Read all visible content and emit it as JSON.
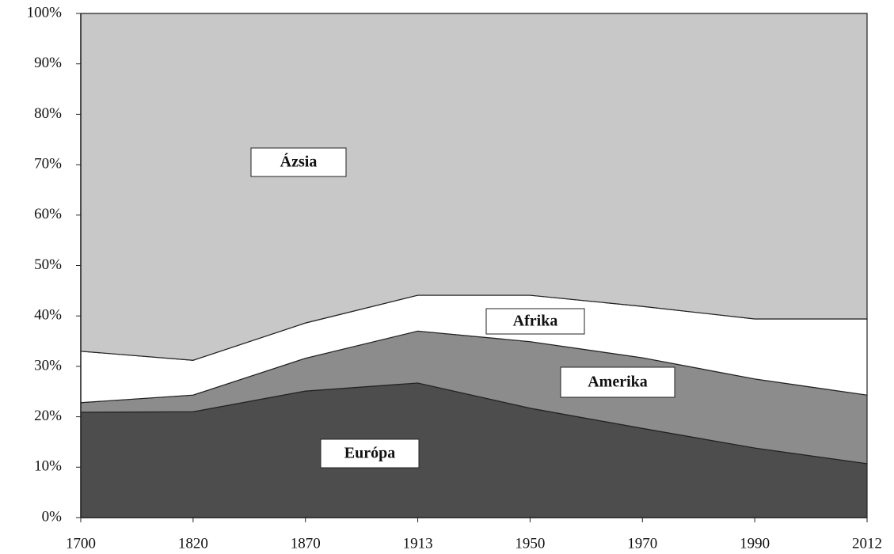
{
  "chart_data": {
    "type": "stacked_area",
    "categories": [
      "1700",
      "1820",
      "1870",
      "1913",
      "1950",
      "1970",
      "1990",
      "2012"
    ],
    "series": [
      {
        "name": "Európa",
        "color": "#4d4d4d",
        "values": [
          20.9,
          21.0,
          25.1,
          26.7,
          21.7,
          17.7,
          13.8,
          10.7
        ]
      },
      {
        "name": "Amerika",
        "color": "#8c8c8c",
        "values": [
          1.9,
          3.3,
          6.5,
          10.3,
          13.2,
          14.0,
          13.7,
          13.6
        ]
      },
      {
        "name": "Afrika",
        "color": "#ffffff",
        "values": [
          10.2,
          6.9,
          7.0,
          7.1,
          9.2,
          10.2,
          11.9,
          15.1
        ]
      },
      {
        "name": "Ázsia",
        "color": "#c8c8c8",
        "values": [
          67.0,
          68.8,
          61.4,
          55.9,
          55.9,
          58.1,
          60.6,
          60.6
        ]
      }
    ],
    "ylim": [
      0,
      100
    ],
    "yticks": [
      {
        "value": 0,
        "label": "0%"
      },
      {
        "value": 10,
        "label": "10%"
      },
      {
        "value": 20,
        "label": "20%"
      },
      {
        "value": 30,
        "label": "30%"
      },
      {
        "value": 40,
        "label": "40%"
      },
      {
        "value": 50,
        "label": "50%"
      },
      {
        "value": 60,
        "label": "60%"
      },
      {
        "value": 70,
        "label": "70%"
      },
      {
        "value": 80,
        "label": "80%"
      },
      {
        "value": 90,
        "label": "90%"
      },
      {
        "value": 100,
        "label": "100%"
      }
    ]
  }
}
